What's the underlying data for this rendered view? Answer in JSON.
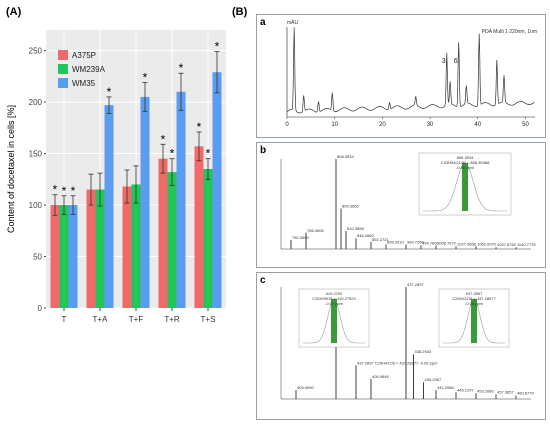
{
  "panel_a": {
    "label": "(A)"
  },
  "panel_b": {
    "label": "(B)",
    "sub_a": "a",
    "sub_b": "b",
    "sub_c": "c"
  },
  "chart_data": [
    {
      "type": "bar",
      "title": "",
      "categories": [
        "T",
        "T+A",
        "T+F",
        "T+R",
        "T+S"
      ],
      "series": [
        {
          "name": "A375P",
          "color": "#f06a6a",
          "values": [
            100,
            115,
            118,
            145,
            157
          ],
          "errors": [
            10,
            15,
            16,
            14,
            14
          ],
          "significant": [
            true,
            false,
            false,
            true,
            true
          ]
        },
        {
          "name": "WM239A",
          "color": "#22c55a",
          "values": [
            100,
            115,
            120,
            132,
            135
          ],
          "errors": [
            9,
            16,
            18,
            13,
            10
          ],
          "significant": [
            true,
            false,
            false,
            true,
            true
          ]
        },
        {
          "name": "WM35",
          "color": "#5a9cf0",
          "values": [
            100,
            197,
            205,
            210,
            229
          ],
          "errors": [
            9,
            8,
            14,
            18,
            20
          ],
          "significant": [
            true,
            true,
            true,
            true,
            true
          ]
        }
      ],
      "significance_mark": "*",
      "xlabel": "",
      "ylabel": "Content of docetaxel in cells [%]",
      "yticks": [
        0,
        50,
        100,
        150,
        200,
        250
      ],
      "ylim": [
        0,
        270
      ],
      "grid": true,
      "legend": "top-left"
    },
    {
      "type": "line",
      "title": "",
      "ylabel": "mAU",
      "xticks": [
        0,
        10,
        20,
        30,
        40,
        50
      ],
      "xlim": [
        0,
        52
      ],
      "annotation": "PDA Multi 1 220nm, 1nm",
      "peak_labels": [
        {
          "label": "3",
          "x": 33.5
        },
        {
          "label": "6",
          "x": 36.0
        }
      ]
    },
    {
      "type": "line",
      "title": "",
      "main_peak": "808.3534",
      "inset_label_1": "808.3534",
      "inset_label_2": "C43H54O14N = 808.35388",
      "inset_label_3": "-0.55 ppm",
      "other_labels": [
        "750.3590",
        "766.3606",
        "809.3566",
        "810.3598",
        "830.3380",
        "811.3603",
        "848.2860",
        "892.2721",
        "849.2746",
        "899.2910",
        "964.7260",
        "994.7800",
        "1008.7672",
        "1027.9668",
        "1062.0070",
        "1097.8760",
        "1140.7776"
      ]
    },
    {
      "type": "line",
      "title": "",
      "inset1_label_1": "419.2792",
      "inset1_label_2": "C25H39O5 = 419.27923",
      "inset1_label_3": "-0.07 ppm",
      "inset2_label_1": "437.2897",
      "inset2_label_2": "C25H41O6 = 437.28977",
      "inset2_label_3": "-0.06 ppm",
      "main_peak": "437.2897",
      "other_labels": [
        "419.2792",
        "409.9090",
        "437.2897 C25H41O6 = 437.28977 -0.06 ppm",
        "438.2933",
        "439.2967",
        "405.9846",
        "441.2986",
        "445.1207",
        "453.2680",
        "457.3857",
        "460.6770",
        "462.9476"
      ]
    }
  ]
}
